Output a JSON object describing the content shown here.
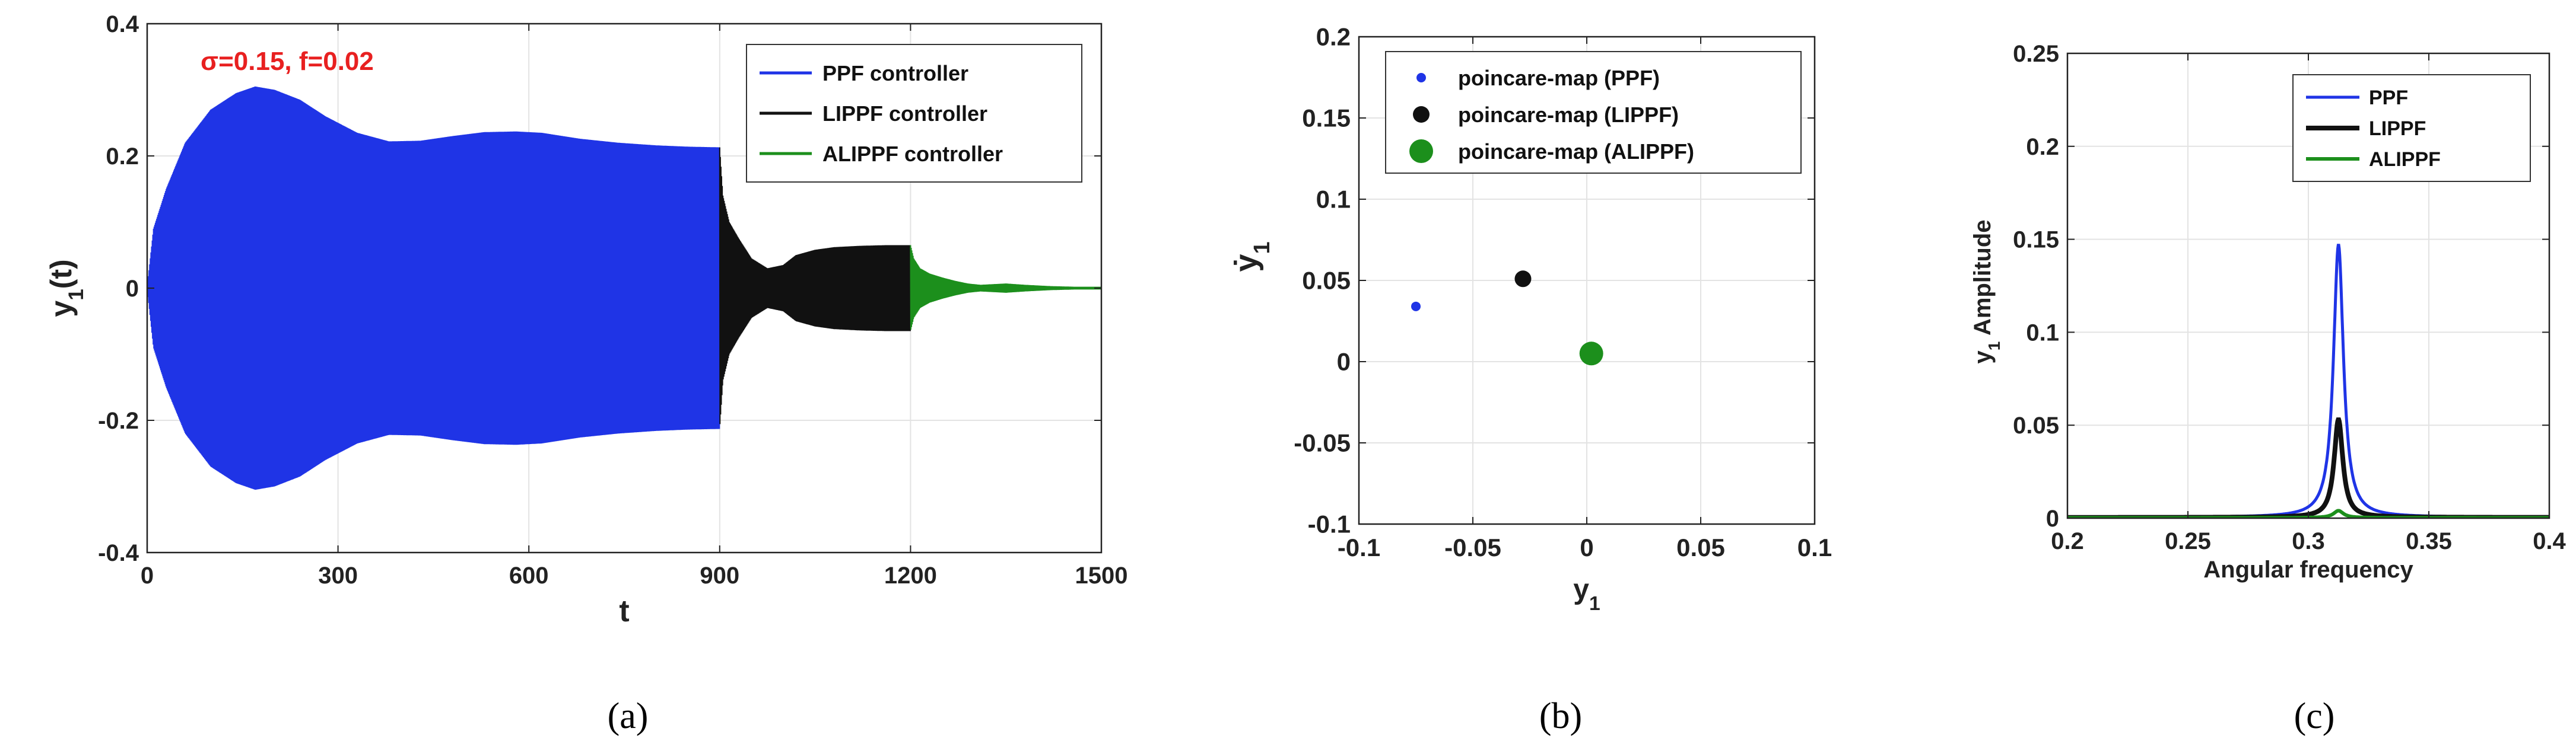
{
  "chart_data": [
    {
      "type": "line",
      "panel": "a",
      "caption": "(a)",
      "annotation": "σ=0.15, f=0.02",
      "xlabel": "t",
      "ylabel": "y1(t)",
      "xlim": [
        0,
        1500
      ],
      "ylim": [
        -0.4,
        0.4
      ],
      "xticks": [
        0,
        300,
        600,
        900,
        1200,
        1500
      ],
      "yticks": [
        -0.4,
        -0.2,
        0,
        0.2,
        0.4
      ],
      "grid": true,
      "legend_position": "top-right",
      "series": [
        {
          "name": "PPF controller",
          "color": "#1f34e6",
          "t": [
            0,
            10,
            30,
            60,
            100,
            140,
            170,
            200,
            240,
            280,
            330,
            380,
            430,
            480,
            530,
            580,
            620,
            680,
            740,
            800,
            850,
            900
          ],
          "envelope": [
            0,
            0.09,
            0.15,
            0.22,
            0.27,
            0.295,
            0.305,
            0.3,
            0.285,
            0.26,
            0.235,
            0.222,
            0.223,
            0.23,
            0.236,
            0.237,
            0.235,
            0.226,
            0.22,
            0.216,
            0.214,
            0.213
          ]
        },
        {
          "name": "LIPPF controller",
          "color": "#111111",
          "t": [
            900,
            905,
            915,
            930,
            950,
            975,
            1000,
            1020,
            1050,
            1080,
            1120,
            1160,
            1200
          ],
          "envelope": [
            0.213,
            0.14,
            0.1,
            0.075,
            0.045,
            0.03,
            0.035,
            0.05,
            0.058,
            0.062,
            0.064,
            0.065,
            0.065
          ]
        },
        {
          "name": "ALIPPF controller",
          "color": "#1c8f1c",
          "t": [
            1200,
            1205,
            1215,
            1230,
            1250,
            1270,
            1290,
            1310,
            1330,
            1350,
            1380,
            1420,
            1460,
            1500
          ],
          "envelope": [
            0.065,
            0.045,
            0.03,
            0.022,
            0.016,
            0.011,
            0.007,
            0.005,
            0.006,
            0.007,
            0.005,
            0.003,
            0.002,
            0.002
          ]
        }
      ]
    },
    {
      "type": "scatter",
      "panel": "b",
      "caption": "(b)",
      "xlabel": "y1",
      "ylabel": "ẏ1",
      "xlim": [
        -0.1,
        0.1
      ],
      "ylim": [
        -0.1,
        0.2
      ],
      "xticks": [
        -0.1,
        -0.05,
        0,
        0.05,
        0.1
      ],
      "yticks": [
        -0.1,
        -0.05,
        0,
        0.05,
        0.1,
        0.15,
        0.2
      ],
      "grid": true,
      "legend_position": "top",
      "series": [
        {
          "name": "poincare-map (PPF)",
          "color": "#1f34e6",
          "marker_size": "small",
          "points": [
            [
              -0.075,
              0.034
            ]
          ]
        },
        {
          "name": "poincare-map (LIPPF)",
          "color": "#111111",
          "marker_size": "medium",
          "points": [
            [
              -0.028,
              0.051
            ]
          ]
        },
        {
          "name": "poincare-map (ALIPPF)",
          "color": "#1c8f1c",
          "marker_size": "large",
          "points": [
            [
              0.002,
              0.005
            ]
          ]
        }
      ]
    },
    {
      "type": "line",
      "panel": "c",
      "caption": "(c)",
      "xlabel": "Angular frequency",
      "ylabel": "y1 Amplitude",
      "xlim": [
        0.2,
        0.4
      ],
      "ylim": [
        0,
        0.25
      ],
      "xticks": [
        0.2,
        0.25,
        0.3,
        0.35,
        0.4
      ],
      "yticks": [
        0,
        0.05,
        0.1,
        0.15,
        0.2,
        0.25
      ],
      "grid": true,
      "legend_position": "top-right",
      "peak_frequency": 0.3125,
      "series": [
        {
          "name": "PPF",
          "color": "#1f34e6",
          "peak": 0.147,
          "base": 0.0005,
          "width": 0.0025
        },
        {
          "name": "LIPPF",
          "color": "#111111",
          "peak": 0.053,
          "base": 0.0004,
          "width": 0.0022
        },
        {
          "name": "ALIPPF",
          "color": "#1c8f1c",
          "peak": 0.004,
          "base": 0.0002,
          "width": 0.0025
        }
      ]
    }
  ]
}
